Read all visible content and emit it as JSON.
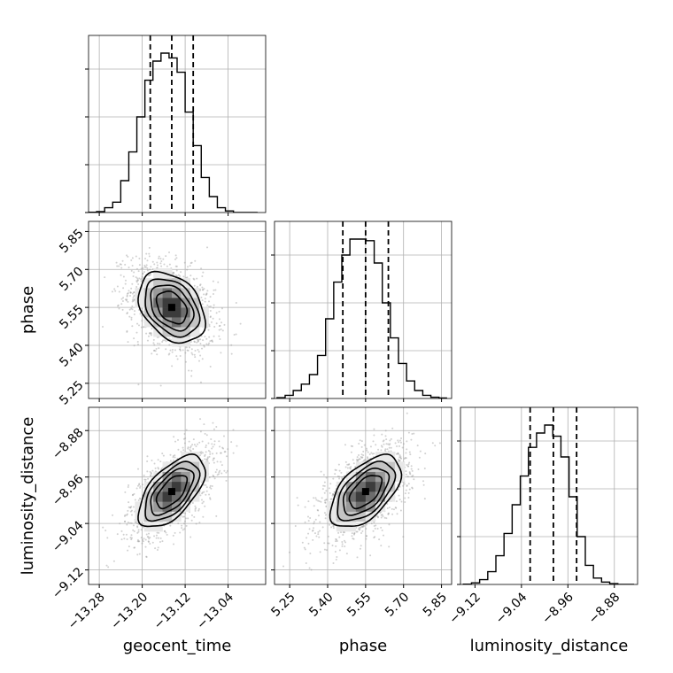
{
  "chart_data": {
    "type": "corner",
    "grid": true,
    "params": [
      "geocent_time",
      "phase",
      "luminosity_distance"
    ],
    "axis_labels": {
      "geocent_time": "geocent_time",
      "phase": "phase",
      "luminosity_distance": "luminosity_distance"
    },
    "ranges": {
      "geocent_time": [
        -13.3,
        -12.97
      ],
      "phase": [
        5.19,
        5.89
      ],
      "luminosity_distance": [
        -9.145,
        -8.84
      ]
    },
    "ticks": {
      "geocent_time": [
        {
          "v": -13.28,
          "t": "−13.28"
        },
        {
          "v": -13.2,
          "t": "−13.20"
        },
        {
          "v": -13.12,
          "t": "−13.12"
        },
        {
          "v": -13.04,
          "t": "−13.04"
        }
      ],
      "phase": [
        {
          "v": 5.25,
          "t": "5.25"
        },
        {
          "v": 5.4,
          "t": "5.40"
        },
        {
          "v": 5.55,
          "t": "5.55"
        },
        {
          "v": 5.7,
          "t": "5.70"
        },
        {
          "v": 5.85,
          "t": "5.85"
        }
      ],
      "luminosity_distance": [
        {
          "v": -9.12,
          "t": "−9.12"
        },
        {
          "v": -9.04,
          "t": "−9.04"
        },
        {
          "v": -8.96,
          "t": "−8.96"
        },
        {
          "v": -8.88,
          "t": "−8.88"
        }
      ]
    },
    "stats": {
      "geocent_time": {
        "median": -13.145,
        "q16": -13.185,
        "q84": -13.105,
        "sd": 0.04
      },
      "phase": {
        "median": 5.55,
        "q16": 5.46,
        "q84": 5.64,
        "sd": 0.09
      },
      "luminosity_distance": {
        "median": -8.985,
        "q16": -9.025,
        "q84": -8.945,
        "sd": 0.04
      }
    },
    "histograms": {
      "geocent_time": {
        "edges": [
          -13.3,
          -13.285,
          -13.27,
          -13.255,
          -13.24,
          -13.225,
          -13.21,
          -13.195,
          -13.18,
          -13.165,
          -13.15,
          -13.135,
          -13.12,
          -13.105,
          -13.09,
          -13.075,
          -13.06,
          -13.045,
          -13.03,
          -13.015,
          -13.0,
          -12.985
        ],
        "counts": [
          0.002,
          0.006,
          0.03,
          0.065,
          0.2,
          0.38,
          0.6,
          0.83,
          0.95,
          1.0,
          0.97,
          0.88,
          0.63,
          0.42,
          0.22,
          0.1,
          0.03,
          0.01,
          0.0,
          0.0,
          0.0
        ]
      },
      "phase": {
        "edges": [
          5.2,
          5.232,
          5.264,
          5.296,
          5.328,
          5.36,
          5.392,
          5.424,
          5.456,
          5.488,
          5.52,
          5.552,
          5.584,
          5.616,
          5.648,
          5.68,
          5.712,
          5.744,
          5.776,
          5.808,
          5.84,
          5.872
        ],
        "counts": [
          0.005,
          0.02,
          0.05,
          0.09,
          0.15,
          0.27,
          0.5,
          0.73,
          0.9,
          1.0,
          1.0,
          0.99,
          0.85,
          0.6,
          0.38,
          0.22,
          0.11,
          0.05,
          0.02,
          0.008,
          0.003
        ]
      },
      "luminosity_distance": {
        "edges": [
          -9.14,
          -9.126,
          -9.112,
          -9.098,
          -9.084,
          -9.07,
          -9.056,
          -9.042,
          -9.028,
          -9.014,
          -9.0,
          -8.986,
          -8.972,
          -8.958,
          -8.944,
          -8.93,
          -8.916,
          -8.902,
          -8.888,
          -8.874,
          -8.86,
          -8.846
        ],
        "counts": [
          0.002,
          0.01,
          0.03,
          0.08,
          0.18,
          0.32,
          0.5,
          0.68,
          0.86,
          0.95,
          1.0,
          0.93,
          0.8,
          0.55,
          0.3,
          0.12,
          0.04,
          0.015,
          0.005,
          0.0,
          0.0
        ]
      }
    },
    "pair_correlations": {
      "phase|geocent_time": -0.35,
      "luminosity_distance|geocent_time": 0.6,
      "luminosity_distance|phase": 0.55
    },
    "colors": {
      "line": "#000000",
      "grid": "#b0b0b0",
      "scatter": "#9a9a9a",
      "density": [
        "#e8e8e8",
        "#c4c4c4",
        "#9a9a9a",
        "#6c6c6c",
        "#3c3c3c"
      ]
    }
  }
}
